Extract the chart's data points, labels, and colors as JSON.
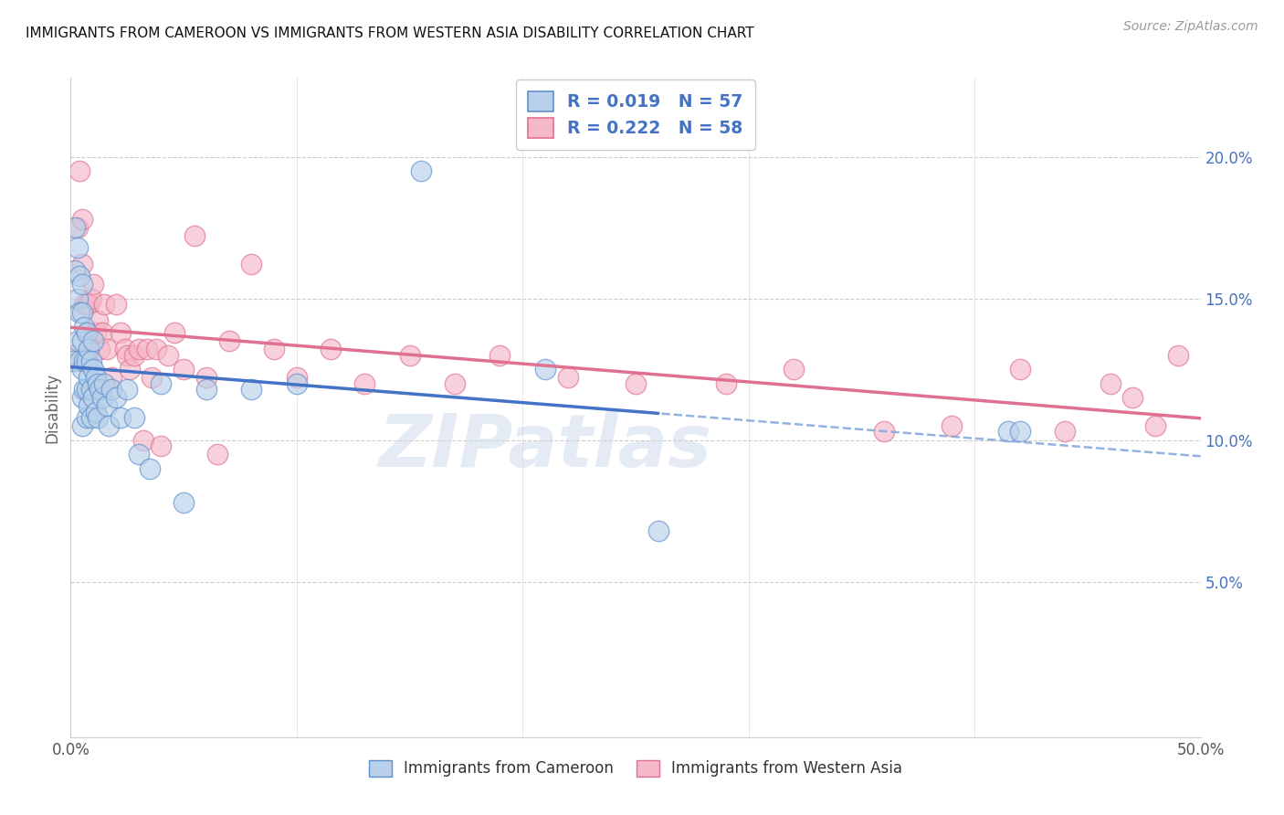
{
  "title": "IMMIGRANTS FROM CAMEROON VS IMMIGRANTS FROM WESTERN ASIA DISABILITY CORRELATION CHART",
  "source": "Source: ZipAtlas.com",
  "ylabel": "Disability",
  "xlim": [
    0.0,
    0.5
  ],
  "ylim": [
    -0.005,
    0.228
  ],
  "yticks": [
    0.05,
    0.1,
    0.15,
    0.2
  ],
  "ytick_labels": [
    "5.0%",
    "10.0%",
    "15.0%",
    "20.0%"
  ],
  "xticks": [
    0.0,
    0.1,
    0.2,
    0.3,
    0.4,
    0.5
  ],
  "xtick_labels": [
    "0.0%",
    "",
    "",
    "",
    "",
    "50.0%"
  ],
  "legend_label1": "Immigrants from Cameroon",
  "legend_label2": "Immigrants from Western Asia",
  "color_blue_fill": "#b8d0ea",
  "color_blue_edge": "#6090cc",
  "color_pink_fill": "#f5b8c8",
  "color_pink_edge": "#e07090",
  "color_blue_line": "#4472c4",
  "color_pink_line": "#e07090",
  "color_blue_dashed": "#88aadd",
  "watermark_text": "ZIPatlas",
  "blue_x": [
    0.001,
    0.002,
    0.002,
    0.003,
    0.003,
    0.003,
    0.004,
    0.004,
    0.004,
    0.005,
    0.005,
    0.005,
    0.005,
    0.005,
    0.005,
    0.006,
    0.006,
    0.006,
    0.007,
    0.007,
    0.007,
    0.007,
    0.008,
    0.008,
    0.008,
    0.009,
    0.009,
    0.009,
    0.01,
    0.01,
    0.01,
    0.011,
    0.011,
    0.012,
    0.012,
    0.013,
    0.014,
    0.015,
    0.016,
    0.017,
    0.018,
    0.02,
    0.022,
    0.025,
    0.028,
    0.03,
    0.035,
    0.04,
    0.05,
    0.06,
    0.08,
    0.1,
    0.155,
    0.21,
    0.26,
    0.415,
    0.42
  ],
  "blue_y": [
    0.128,
    0.175,
    0.16,
    0.168,
    0.15,
    0.135,
    0.158,
    0.145,
    0.128,
    0.155,
    0.145,
    0.135,
    0.125,
    0.115,
    0.105,
    0.14,
    0.128,
    0.118,
    0.138,
    0.128,
    0.118,
    0.108,
    0.132,
    0.122,
    0.112,
    0.128,
    0.118,
    0.108,
    0.135,
    0.125,
    0.115,
    0.122,
    0.11,
    0.12,
    0.108,
    0.118,
    0.115,
    0.12,
    0.112,
    0.105,
    0.118,
    0.115,
    0.108,
    0.118,
    0.108,
    0.095,
    0.09,
    0.12,
    0.078,
    0.118,
    0.118,
    0.12,
    0.195,
    0.125,
    0.068,
    0.103,
    0.103
  ],
  "pink_x": [
    0.001,
    0.003,
    0.004,
    0.005,
    0.005,
    0.006,
    0.007,
    0.007,
    0.008,
    0.008,
    0.009,
    0.01,
    0.011,
    0.012,
    0.013,
    0.014,
    0.015,
    0.016,
    0.018,
    0.02,
    0.022,
    0.024,
    0.025,
    0.026,
    0.028,
    0.03,
    0.032,
    0.034,
    0.036,
    0.038,
    0.04,
    0.043,
    0.046,
    0.05,
    0.055,
    0.06,
    0.065,
    0.07,
    0.08,
    0.09,
    0.1,
    0.115,
    0.13,
    0.15,
    0.17,
    0.19,
    0.22,
    0.25,
    0.29,
    0.32,
    0.36,
    0.39,
    0.42,
    0.44,
    0.46,
    0.47,
    0.48,
    0.49
  ],
  "pink_y": [
    0.13,
    0.175,
    0.195,
    0.178,
    0.162,
    0.148,
    0.148,
    0.138,
    0.148,
    0.132,
    0.15,
    0.155,
    0.138,
    0.142,
    0.132,
    0.138,
    0.148,
    0.132,
    0.122,
    0.148,
    0.138,
    0.132,
    0.13,
    0.125,
    0.13,
    0.132,
    0.1,
    0.132,
    0.122,
    0.132,
    0.098,
    0.13,
    0.138,
    0.125,
    0.172,
    0.122,
    0.095,
    0.135,
    0.162,
    0.132,
    0.122,
    0.132,
    0.12,
    0.13,
    0.12,
    0.13,
    0.122,
    0.12,
    0.12,
    0.125,
    0.103,
    0.105,
    0.125,
    0.103,
    0.12,
    0.115,
    0.105,
    0.13
  ]
}
